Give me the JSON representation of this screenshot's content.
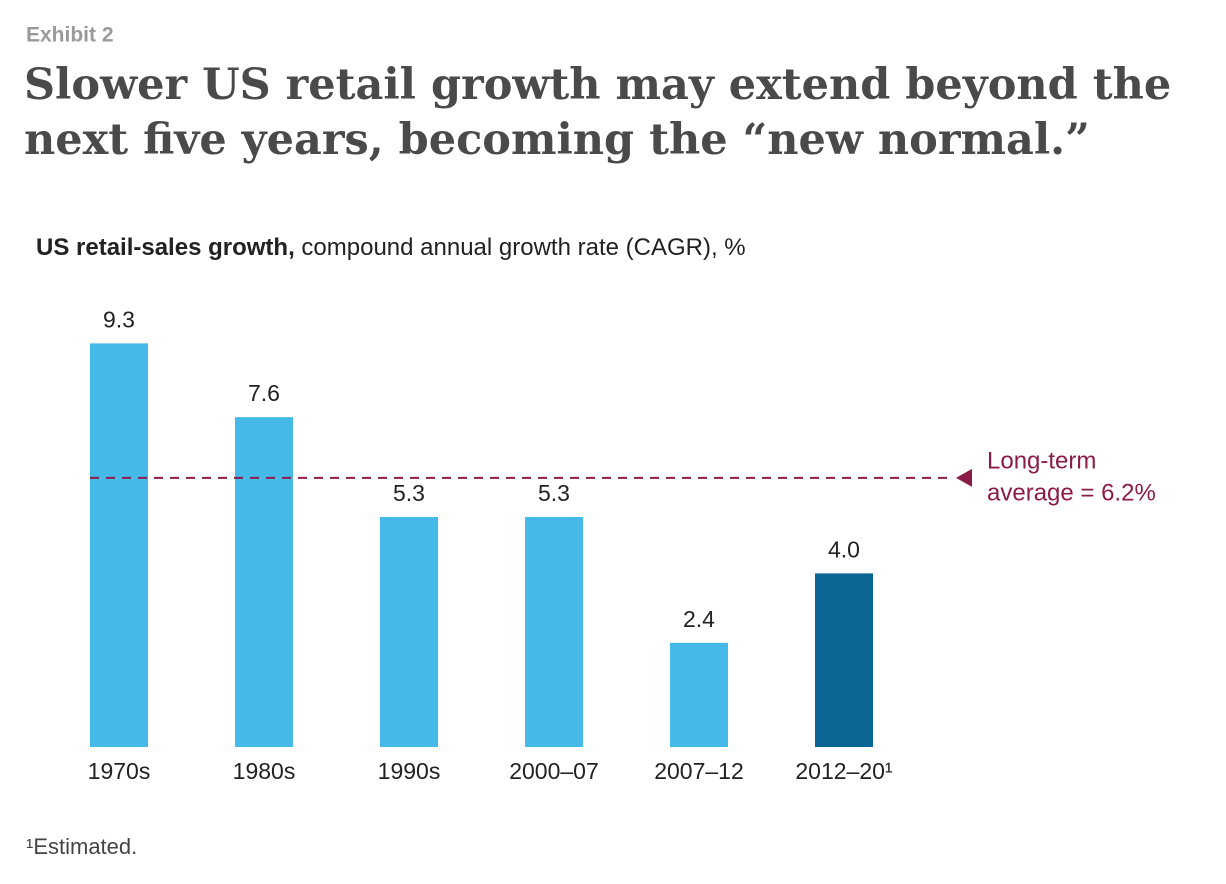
{
  "chart_data": {
    "type": "bar",
    "eyebrow": "Exhibit 2",
    "title": [
      "Slower US retail growth may extend beyond the",
      "next five years, becoming the “new normal.”"
    ],
    "subtitle_bold": "US retail-sales growth,",
    "subtitle": "compound annual growth rate (CAGR), %",
    "categories": [
      "1970s",
      "1980s",
      "1990s",
      "2000–07",
      "2007–12",
      "2012–20¹"
    ],
    "values": [
      9.3,
      7.6,
      5.3,
      5.3,
      2.4,
      4.0
    ],
    "value_labels": [
      "9.3",
      "7.6",
      "5.3",
      "5.3",
      "2.4",
      "4.0"
    ],
    "colors": [
      "#45b9e8",
      "#45b9e8",
      "#45b9e8",
      "#45b9e8",
      "#45b9e8",
      "#0c6594"
    ],
    "reference_line": {
      "value": 6.2,
      "label": [
        "Long-term",
        "average = 6.2%"
      ],
      "color": "#8b1c47"
    },
    "footnote": "¹Estimated."
  }
}
